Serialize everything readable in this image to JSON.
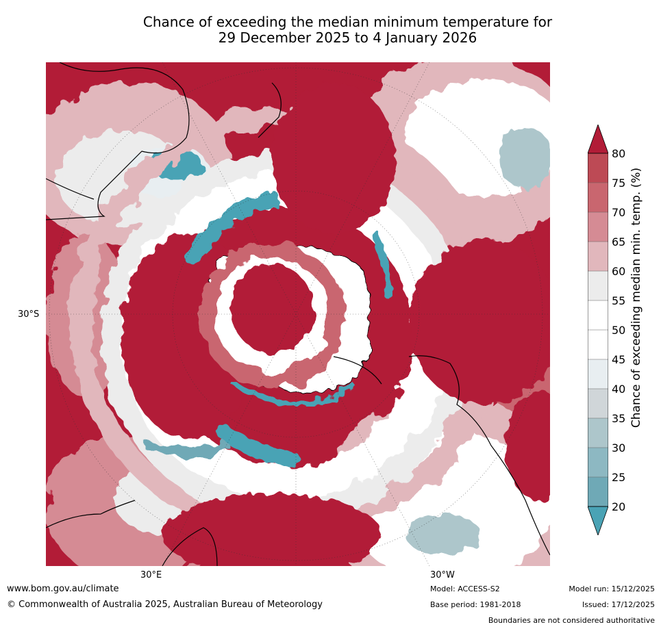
{
  "title": {
    "line1": "Chance of exceeding the median minimum temperature for",
    "line2": "29 December 2025 to 4 January 2026"
  },
  "map": {
    "lat_label": "30°S",
    "lon_labels": [
      "30°E",
      "30°W"
    ],
    "palette": {
      "c20": "#4aa3b5",
      "c25": "#6fa9b6",
      "c30": "#8db8c2",
      "c35": "#adc6cb",
      "c40": "#d0d6d9",
      "c45": "#e8eef1",
      "c50": "#ffffff",
      "c55": "#ffffff",
      "c60": "#ececec",
      "c65": "#e1b7bc",
      "c70": "#d58b94",
      "c75": "#c9666f",
      "c80": "#bd4a55",
      "c80plus": "#b21c37"
    }
  },
  "legend": {
    "title": "Chance of exceeding median min. temp. (%)",
    "ticks": [
      "80",
      "75",
      "70",
      "65",
      "60",
      "55",
      "50",
      "45",
      "40",
      "35",
      "30",
      "25",
      "20"
    ]
  },
  "footer": {
    "website": "www.bom.gov.au/climate",
    "copyright": "© Commonwealth of Australia 2025, Australian Bureau of Meteorology",
    "model": "Model: ACCESS-S2",
    "base_period": "Base period: 1981-2018",
    "model_run": "Model run: 15/12/2025",
    "issued": "Issued: 17/12/2025",
    "disclaimer": "Boundaries are not considered authoritative"
  }
}
